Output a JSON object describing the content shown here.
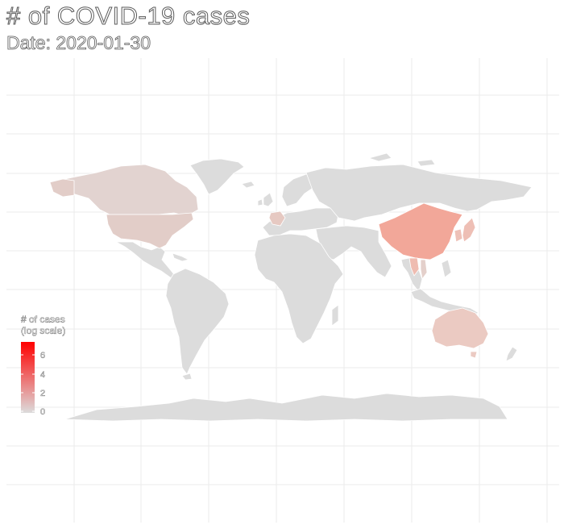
{
  "header": {
    "title": "# of COVID-19 cases",
    "subtitle": "Date: 2020-01-30"
  },
  "legend": {
    "title_line1": "# of cases",
    "title_line2": "(log scale)",
    "ticks": [
      "6",
      "4",
      "2",
      "0"
    ],
    "color_low": "#dcdcdc",
    "color_high": "#ff0000"
  },
  "colors": {
    "no_data": "#dcdcdc",
    "land_border": "#ffffff",
    "grid": "#ebebeb",
    "background": "#ffffff"
  },
  "map_data": {
    "type": "choropleth",
    "scale": "log",
    "regions": [
      {
        "name": "China",
        "log_cases": 3.8
      },
      {
        "name": "United States",
        "log_cases": 1.0
      },
      {
        "name": "Canada",
        "log_cases": 0.8
      },
      {
        "name": "France",
        "log_cases": 1.2
      },
      {
        "name": "Australia",
        "log_cases": 1.4
      },
      {
        "name": "Japan",
        "log_cases": 1.5
      },
      {
        "name": "South Korea",
        "log_cases": 1.4
      },
      {
        "name": "Thailand",
        "log_cases": 1.6
      },
      {
        "name": "Vietnam",
        "log_cases": 0.6
      }
    ]
  }
}
